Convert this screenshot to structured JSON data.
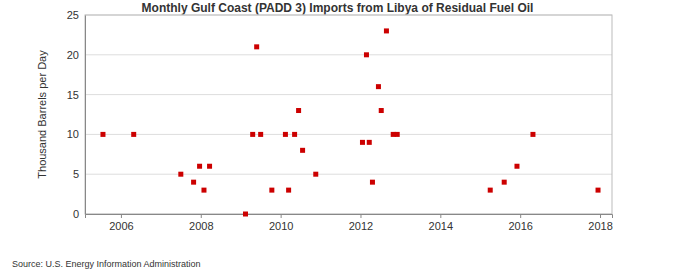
{
  "chart_data": {
    "type": "scatter",
    "title": "Monthly Gulf Coast (PADD 3) Imports from Libya of Residual Fuel Oil",
    "y_label": "Thousand Barrels per Day",
    "annotations": [
      "Source: U.S. Energy Information Administration"
    ],
    "x": [
      2005.55,
      2006.32,
      2007.5,
      2007.82,
      2007.97,
      2008.08,
      2008.22,
      2009.12,
      2009.3,
      2009.4,
      2009.5,
      2009.78,
      2010.12,
      2010.2,
      2010.35,
      2010.45,
      2010.55,
      2010.88,
      2012.05,
      2012.15,
      2012.22,
      2012.3,
      2012.45,
      2012.52,
      2012.65,
      2012.82,
      2012.92,
      2015.25,
      2015.6,
      2015.92,
      2016.32,
      2017.95
    ],
    "values": [
      10,
      10,
      5,
      4,
      6,
      3,
      6,
      0,
      10,
      21,
      10,
      3,
      10,
      3,
      10,
      13,
      8,
      5,
      9,
      20,
      9,
      4,
      16,
      13,
      23,
      10,
      10,
      3,
      4,
      6,
      10,
      3
    ],
    "color": "#cc0000",
    "marker": "square",
    "xlim": [
      2005.1,
      2018.3
    ],
    "xticks": [
      2006,
      2008,
      2010,
      2012,
      2014,
      2016,
      2018
    ],
    "ylim": [
      0,
      25
    ],
    "yticks": [
      0,
      5,
      10,
      15,
      20,
      25
    ],
    "grid": true
  }
}
